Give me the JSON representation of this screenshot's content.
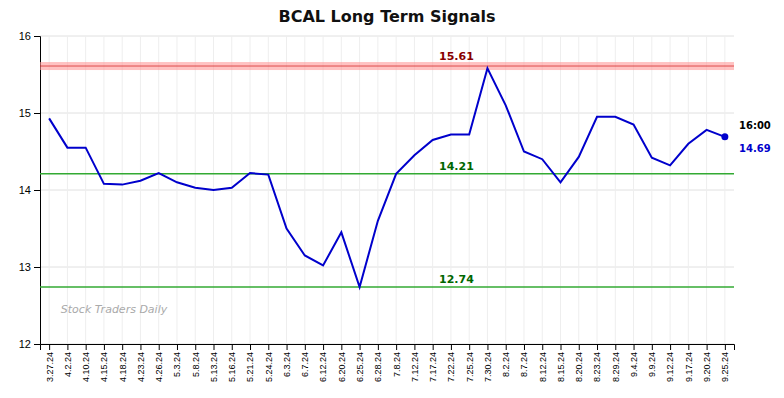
{
  "chart_data": {
    "type": "line",
    "title": "BCAL Long Term Signals",
    "categories": [
      "3.27.24",
      "4.2.24",
      "4.10.24",
      "4.15.24",
      "4.18.24",
      "4.23.24",
      "4.26.24",
      "5.3.24",
      "5.8.24",
      "5.13.24",
      "5.16.24",
      "5.21.24",
      "5.24.24",
      "6.3.24",
      "6.7.24",
      "6.12.24",
      "6.20.24",
      "6.25.24",
      "6.28.24",
      "7.8.24",
      "7.12.24",
      "7.17.24",
      "7.22.24",
      "7.25.24",
      "7.30.24",
      "8.2.24",
      "8.7.24",
      "8.12.24",
      "8.15.24",
      "8.20.24",
      "8.23.24",
      "8.29.24",
      "9.4.24",
      "9.9.24",
      "9.12.24",
      "9.17.24",
      "9.20.24",
      "9.25.24"
    ],
    "values": [
      14.93,
      14.55,
      14.55,
      14.08,
      14.07,
      14.12,
      14.22,
      14.1,
      14.03,
      14.0,
      14.03,
      14.22,
      14.2,
      13.5,
      13.15,
      13.02,
      13.45,
      12.74,
      13.6,
      14.21,
      14.45,
      14.65,
      14.72,
      14.72,
      15.58,
      15.1,
      14.5,
      14.4,
      14.1,
      14.43,
      14.95,
      14.95,
      14.85,
      14.42,
      14.32,
      14.6,
      14.78,
      14.69
    ],
    "color": "#0000cc",
    "ylim": [
      12,
      16
    ],
    "yticks": [
      12,
      13,
      14,
      15,
      16
    ],
    "grid": true,
    "reference_lines": [
      {
        "value": 15.61,
        "label": "15.61",
        "color": "#cc0000",
        "band_color": "#ff9999",
        "label_color": "#880000"
      },
      {
        "value": 14.21,
        "label": "14.21",
        "color": "#33aa33",
        "label_color": "#006600"
      },
      {
        "value": 12.74,
        "label": "12.74",
        "color": "#33aa33",
        "label_color": "#006600"
      }
    ],
    "endpoint_labels": [
      {
        "text": "16:00",
        "color": "#000000"
      },
      {
        "text": "14.69",
        "color": "#0000cc"
      }
    ],
    "watermark": {
      "text": "Stock Traders Daily",
      "color": "#aaaaaa"
    }
  }
}
